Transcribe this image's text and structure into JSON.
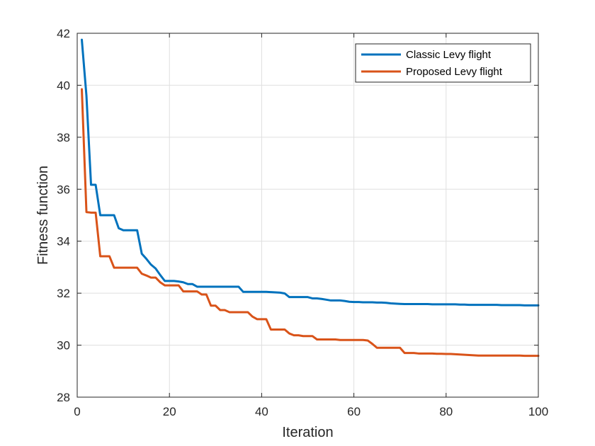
{
  "chart_data": {
    "type": "line",
    "xlabel": "Iteration",
    "ylabel": "Fitness function",
    "xlim": [
      0,
      100
    ],
    "ylim": [
      28,
      42
    ],
    "xticks": [
      0,
      20,
      40,
      60,
      80,
      100
    ],
    "yticks": [
      28,
      30,
      32,
      34,
      36,
      38,
      40,
      42
    ],
    "grid": true,
    "legend_position": "top-right",
    "series": [
      {
        "name": "Classic Levy flight",
        "color": "#0072BD",
        "x": [
          1,
          2,
          3,
          4,
          5,
          6,
          7,
          8,
          9,
          10,
          11,
          12,
          13,
          14,
          15,
          16,
          17,
          18,
          19,
          20,
          21,
          22,
          23,
          24,
          25,
          26,
          27,
          28,
          29,
          30,
          31,
          32,
          33,
          34,
          35,
          36,
          37,
          38,
          39,
          40,
          41,
          42,
          43,
          44,
          45,
          46,
          47,
          48,
          49,
          50,
          51,
          52,
          53,
          54,
          55,
          56,
          57,
          58,
          59,
          60,
          61,
          62,
          63,
          64,
          65,
          66,
          67,
          68,
          69,
          70,
          71,
          72,
          73,
          74,
          75,
          76,
          77,
          78,
          79,
          80,
          81,
          82,
          83,
          84,
          85,
          86,
          87,
          88,
          89,
          90,
          91,
          92,
          93,
          94,
          95,
          96,
          97,
          98,
          99,
          100
        ],
        "values": [
          41.75,
          39.6,
          36.17,
          36.17,
          35.0,
          35.0,
          35.0,
          35.0,
          34.5,
          34.42,
          34.42,
          34.42,
          34.42,
          33.52,
          33.32,
          33.1,
          32.95,
          32.7,
          32.47,
          32.47,
          32.47,
          32.45,
          32.42,
          32.35,
          32.35,
          32.25,
          32.25,
          32.25,
          32.25,
          32.25,
          32.25,
          32.25,
          32.25,
          32.25,
          32.25,
          32.05,
          32.05,
          32.05,
          32.05,
          32.05,
          32.05,
          32.04,
          32.03,
          32.02,
          31.99,
          31.85,
          31.85,
          31.85,
          31.85,
          31.85,
          31.8,
          31.8,
          31.78,
          31.75,
          31.72,
          31.72,
          31.72,
          31.7,
          31.67,
          31.66,
          31.66,
          31.65,
          31.65,
          31.65,
          31.64,
          31.64,
          31.63,
          31.61,
          31.6,
          31.59,
          31.58,
          31.58,
          31.58,
          31.58,
          31.58,
          31.58,
          31.57,
          31.57,
          31.57,
          31.57,
          31.57,
          31.57,
          31.56,
          31.56,
          31.55,
          31.55,
          31.55,
          31.55,
          31.55,
          31.55,
          31.55,
          31.54,
          31.54,
          31.54,
          31.54,
          31.54,
          31.53,
          31.53,
          31.53,
          31.53
        ]
      },
      {
        "name": "Proposed Levy flight",
        "color": "#D95319",
        "x": [
          1,
          2,
          3,
          4,
          5,
          6,
          7,
          8,
          9,
          10,
          11,
          12,
          13,
          14,
          15,
          16,
          17,
          18,
          19,
          20,
          21,
          22,
          23,
          24,
          25,
          26,
          27,
          28,
          29,
          30,
          31,
          32,
          33,
          34,
          35,
          36,
          37,
          38,
          39,
          40,
          41,
          42,
          43,
          44,
          45,
          46,
          47,
          48,
          49,
          50,
          51,
          52,
          53,
          54,
          55,
          56,
          57,
          58,
          59,
          60,
          61,
          62,
          63,
          64,
          65,
          66,
          67,
          68,
          69,
          70,
          71,
          72,
          73,
          74,
          75,
          76,
          77,
          78,
          79,
          80,
          81,
          82,
          83,
          84,
          85,
          86,
          87,
          88,
          89,
          90,
          91,
          92,
          93,
          94,
          95,
          96,
          97,
          98,
          99,
          100
        ],
        "values": [
          39.85,
          35.12,
          35.1,
          35.1,
          33.42,
          33.42,
          33.42,
          32.98,
          32.98,
          32.98,
          32.98,
          32.98,
          32.98,
          32.75,
          32.68,
          32.6,
          32.6,
          32.42,
          32.3,
          32.3,
          32.3,
          32.3,
          32.07,
          32.07,
          32.07,
          32.07,
          31.95,
          31.95,
          31.52,
          31.52,
          31.35,
          31.35,
          31.27,
          31.27,
          31.27,
          31.27,
          31.27,
          31.1,
          31.0,
          31.0,
          31.0,
          30.6,
          30.6,
          30.6,
          30.6,
          30.45,
          30.38,
          30.38,
          30.35,
          30.35,
          30.35,
          30.22,
          30.22,
          30.22,
          30.22,
          30.22,
          30.2,
          30.2,
          30.2,
          30.2,
          30.2,
          30.2,
          30.18,
          30.05,
          29.9,
          29.9,
          29.9,
          29.9,
          29.9,
          29.9,
          29.7,
          29.7,
          29.7,
          29.68,
          29.68,
          29.68,
          29.68,
          29.67,
          29.67,
          29.66,
          29.66,
          29.65,
          29.64,
          29.63,
          29.62,
          29.61,
          29.6,
          29.6,
          29.6,
          29.6,
          29.6,
          29.6,
          29.6,
          29.6,
          29.6,
          29.6,
          29.59,
          29.59,
          29.59,
          29.59
        ]
      }
    ]
  }
}
